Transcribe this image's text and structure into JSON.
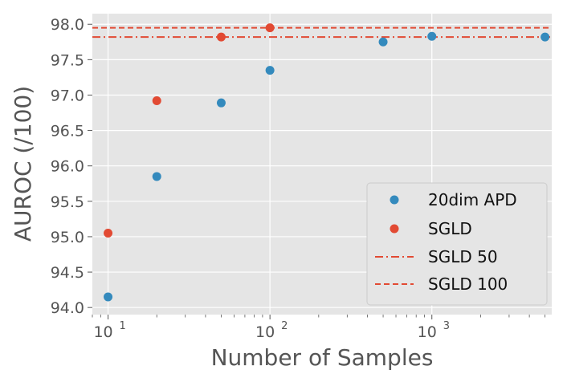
{
  "chart_data": {
    "type": "scatter",
    "xscale": "log",
    "xlim": [
      8,
      5500
    ],
    "ylim": [
      93.9,
      98.15
    ],
    "xlabel": "Number of Samples",
    "ylabel": "AUROC (/100)",
    "x_major_ticks": [
      {
        "value": 10,
        "base": "10",
        "exp": "1"
      },
      {
        "value": 100,
        "base": "10",
        "exp": "2"
      },
      {
        "value": 1000,
        "base": "10",
        "exp": "3"
      }
    ],
    "y_ticks": [
      94.0,
      94.5,
      95.0,
      95.5,
      96.0,
      96.5,
      97.0,
      97.5,
      98.0
    ],
    "y_tick_labels": [
      "94.0",
      "94.5",
      "95.0",
      "95.5",
      "96.0",
      "96.5",
      "97.0",
      "97.5",
      "98.0"
    ],
    "series": [
      {
        "name": "20dim APD",
        "kind": "points",
        "color": "#348ABD",
        "points": [
          [
            10,
            94.15
          ],
          [
            20,
            95.85
          ],
          [
            50,
            96.89
          ],
          [
            100,
            97.35
          ],
          [
            500,
            97.75
          ],
          [
            1000,
            97.83
          ],
          [
            5000,
            97.82
          ]
        ]
      },
      {
        "name": "SGLD",
        "kind": "points",
        "color": "#E24A33",
        "points": [
          [
            10,
            95.05
          ],
          [
            20,
            96.92
          ],
          [
            50,
            97.82
          ],
          [
            100,
            97.95
          ]
        ]
      },
      {
        "name": "SGLD 50",
        "kind": "hline",
        "style": "dashdot",
        "color": "#E24A33",
        "y": 97.82
      },
      {
        "name": "SGLD 100",
        "kind": "hline",
        "style": "dashed",
        "color": "#E24A33",
        "y": 97.95
      }
    ],
    "legend_position": "lower-right",
    "grid": true,
    "style": "ggplot"
  }
}
